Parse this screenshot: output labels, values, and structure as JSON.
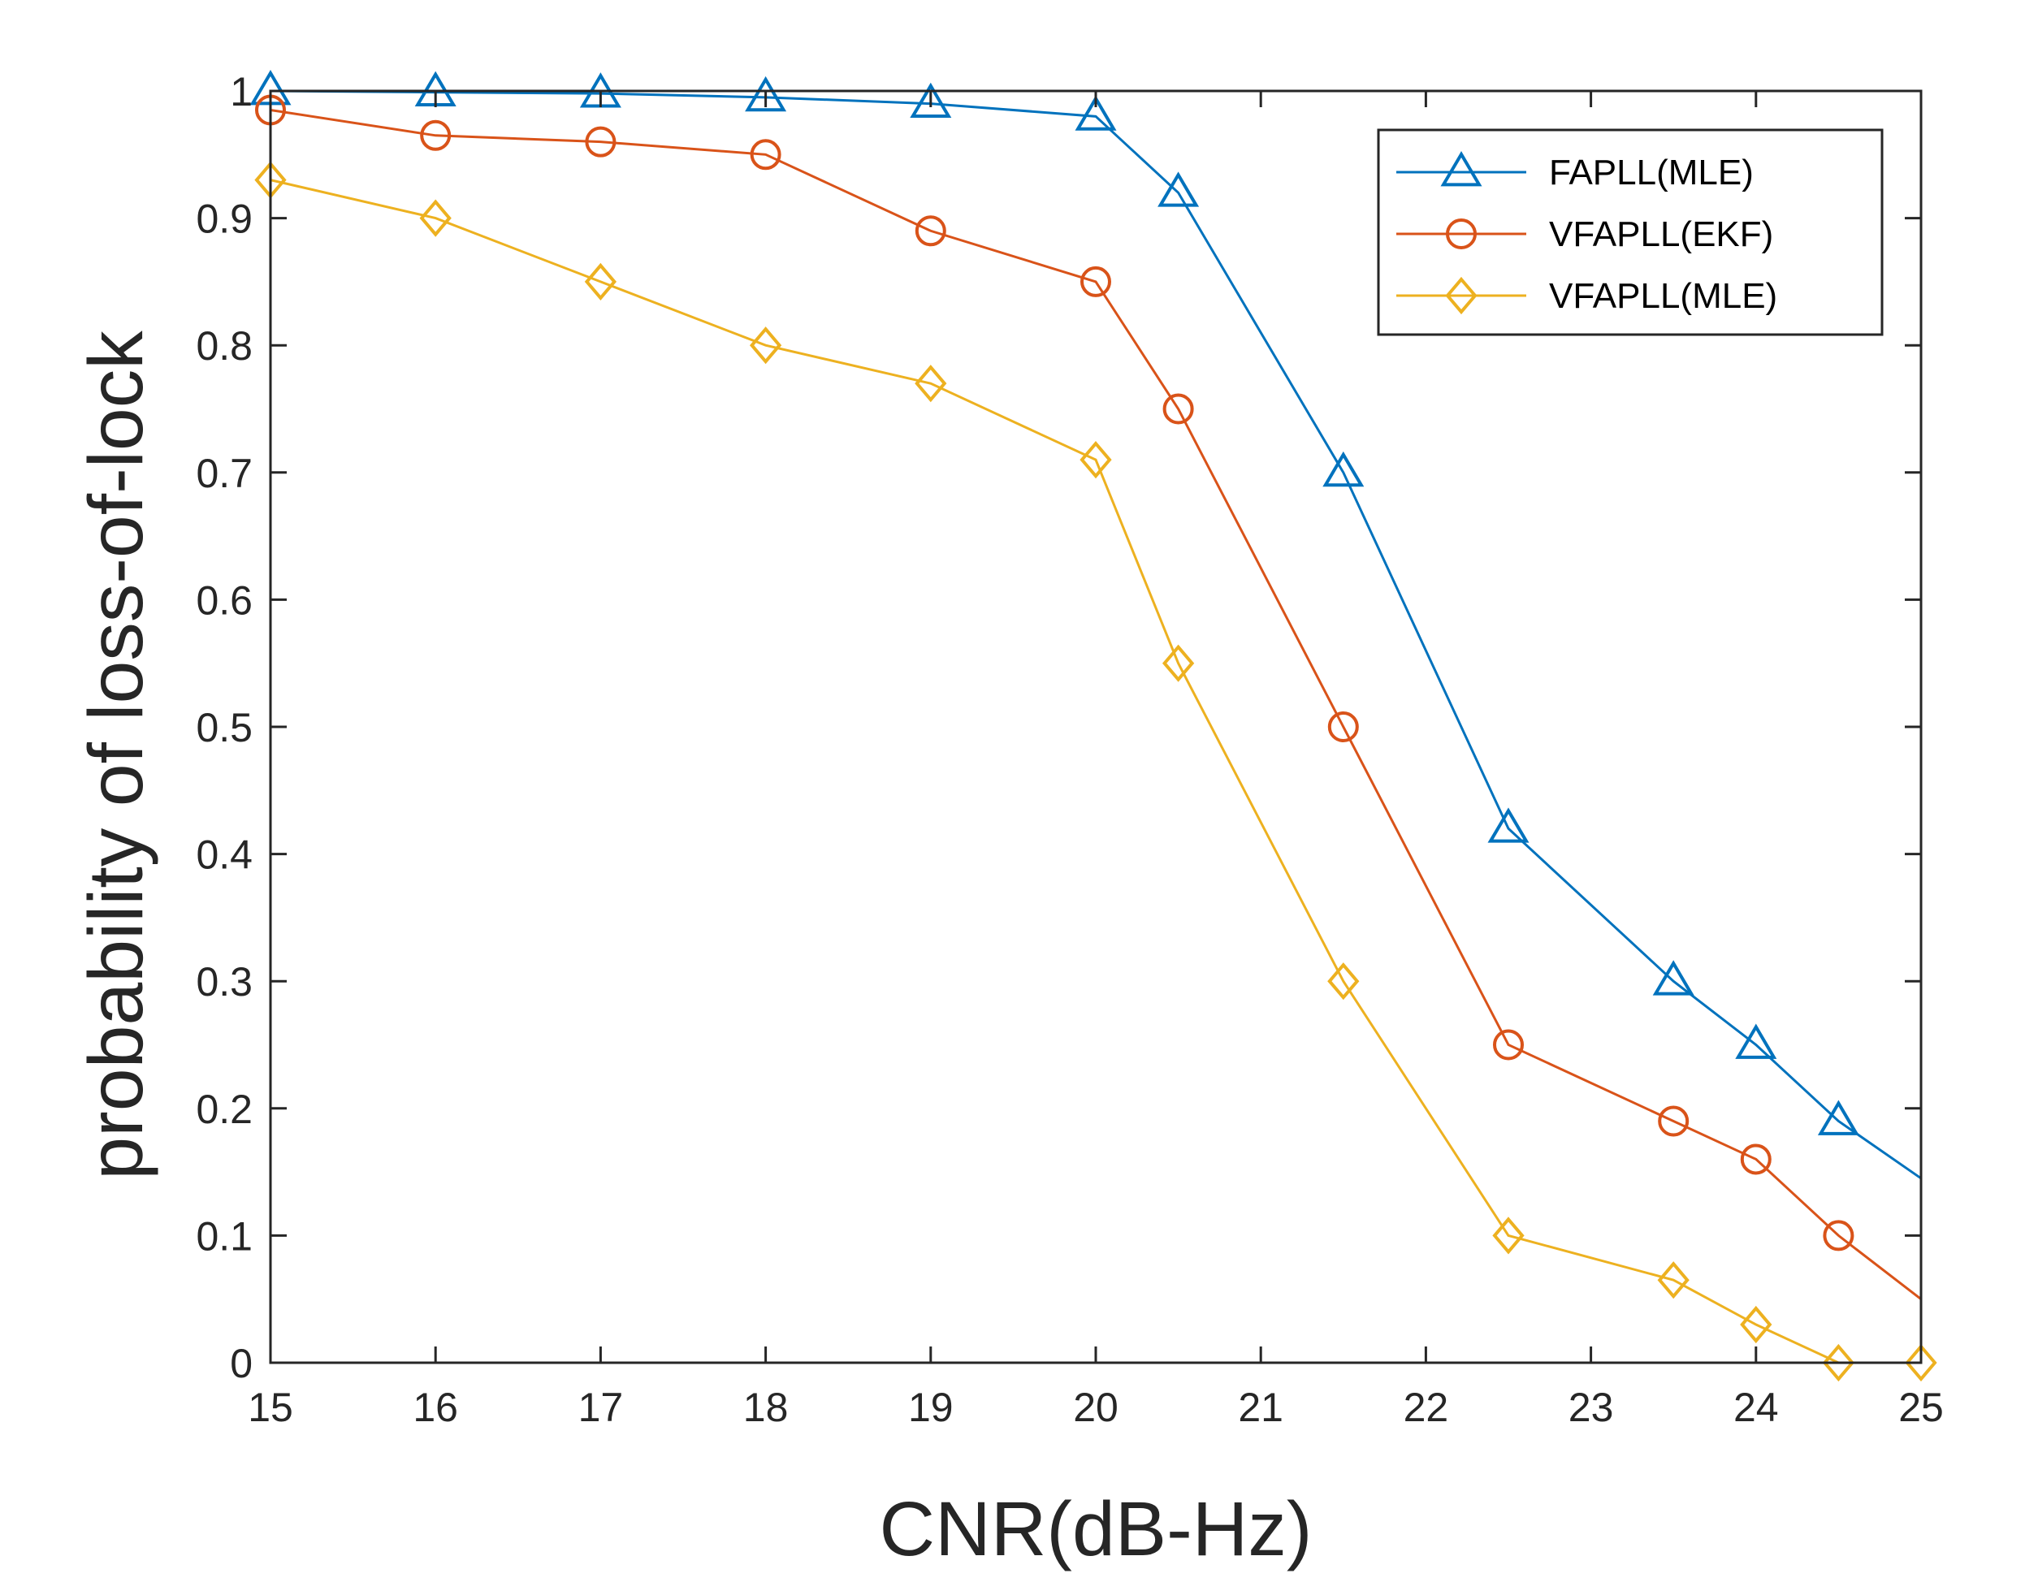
{
  "chart_data": {
    "type": "line",
    "title": "",
    "xlabel": "CNR(dB-Hz)",
    "ylabel": "probability of loss-of-lock",
    "xlim": [
      15,
      25
    ],
    "ylim": [
      0,
      1
    ],
    "xticks": [
      15,
      16,
      17,
      18,
      19,
      20,
      21,
      22,
      23,
      24,
      25
    ],
    "xtick_labels": [
      "15",
      "16",
      "17",
      "18",
      "19",
      "20",
      "21",
      "22",
      "23",
      "24",
      "25"
    ],
    "yticks": [
      0,
      0.1,
      0.2,
      0.3,
      0.4,
      0.5,
      0.6,
      0.7,
      0.8,
      0.9,
      1
    ],
    "ytick_labels": [
      "0",
      "0.1",
      "0.2",
      "0.3",
      "0.4",
      "0.5",
      "0.6",
      "0.7",
      "0.8",
      "0.9",
      "1"
    ],
    "grid": false,
    "legend_position": "top-right",
    "series": [
      {
        "name": "FAPLL(MLE)",
        "color": "#0072BD",
        "marker": "triangle",
        "x": [
          15,
          16,
          17,
          18,
          19,
          20,
          20.5,
          21.5,
          22.5,
          23.5,
          24,
          24.5
        ],
        "y": [
          1.0,
          0.999,
          0.998,
          0.995,
          0.99,
          0.98,
          0.92,
          0.7,
          0.42,
          0.3,
          0.25,
          0.19
        ],
        "line_end": [
          25,
          0.145
        ]
      },
      {
        "name": "VFAPLL(EKF)",
        "color": "#D95319",
        "marker": "circle",
        "x": [
          15,
          16,
          17,
          18,
          19,
          20,
          20.5,
          21.5,
          22.5,
          23.5,
          24,
          24.5
        ],
        "y": [
          0.985,
          0.965,
          0.96,
          0.95,
          0.89,
          0.85,
          0.75,
          0.5,
          0.25,
          0.19,
          0.16,
          0.1
        ],
        "line_end": [
          25,
          0.05
        ]
      },
      {
        "name": "VFAPLL(MLE)",
        "color": "#EDB120",
        "marker": "diamond",
        "x": [
          15,
          16,
          17,
          18,
          19,
          20,
          20.5,
          21.5,
          22.5,
          23.5,
          24,
          24.5,
          25
        ],
        "y": [
          0.93,
          0.9,
          0.85,
          0.8,
          0.77,
          0.71,
          0.55,
          0.3,
          0.1,
          0.065,
          0.03,
          0.0,
          0.0
        ],
        "line_end": null
      }
    ]
  }
}
